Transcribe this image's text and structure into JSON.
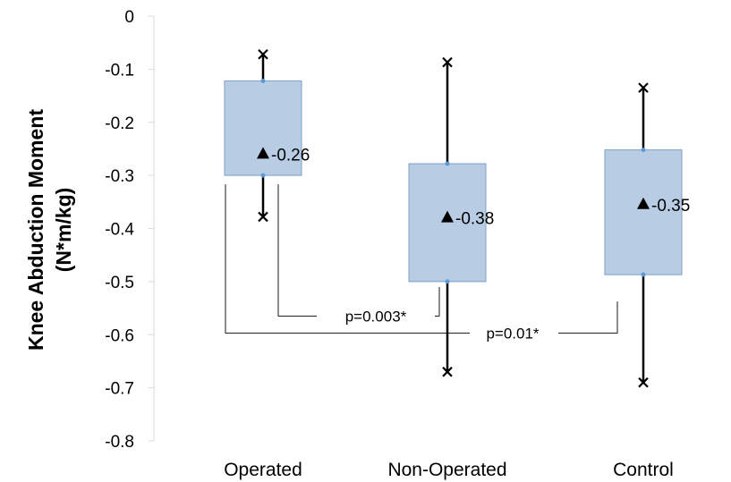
{
  "chart_data": {
    "type": "box",
    "ylabel": [
      "Knee Abduction Moment",
      "(N*m/kg)"
    ],
    "xlabel": "",
    "ylim": [
      -0.8,
      0
    ],
    "yticks": [
      0,
      -0.1,
      -0.2,
      -0.3,
      -0.4,
      -0.5,
      -0.6,
      -0.7,
      -0.8
    ],
    "ytick_labels": [
      "0",
      "-0.1",
      "-0.2",
      "-0.3",
      "-0.4",
      "-0.5",
      "-0.6",
      "-0.7",
      "-0.8"
    ],
    "categories": [
      "Operated",
      "Non-Operated",
      "Control"
    ],
    "boxes": [
      {
        "category": "Operated",
        "max": -0.072,
        "q3": -0.122,
        "mean": -0.26,
        "mean_label": "-0.26",
        "q1": -0.3,
        "min": -0.378
      },
      {
        "category": "Non-Operated",
        "max": -0.087,
        "q3": -0.278,
        "mean": -0.38,
        "mean_label": "-0.38",
        "q1": -0.5,
        "min": -0.67
      },
      {
        "category": "Control",
        "max": -0.135,
        "q3": -0.252,
        "mean": -0.355,
        "mean_label": "-0.35",
        "q1": -0.487,
        "min": -0.69
      }
    ],
    "significance": [
      {
        "from": "Operated",
        "to": "Non-Operated",
        "label": "p=0.003*",
        "y": -0.565
      },
      {
        "from": "Operated",
        "to": "Control",
        "label": "p=0.01*",
        "y": -0.597
      }
    ],
    "colors": {
      "box_fill": "#b8cce4",
      "box_stroke": "#7f9fc6",
      "whisker": "#000000",
      "quartile_marker": "#5b9bd5",
      "axis": "#d9d9d9"
    },
    "grid": false,
    "legend": "none"
  }
}
